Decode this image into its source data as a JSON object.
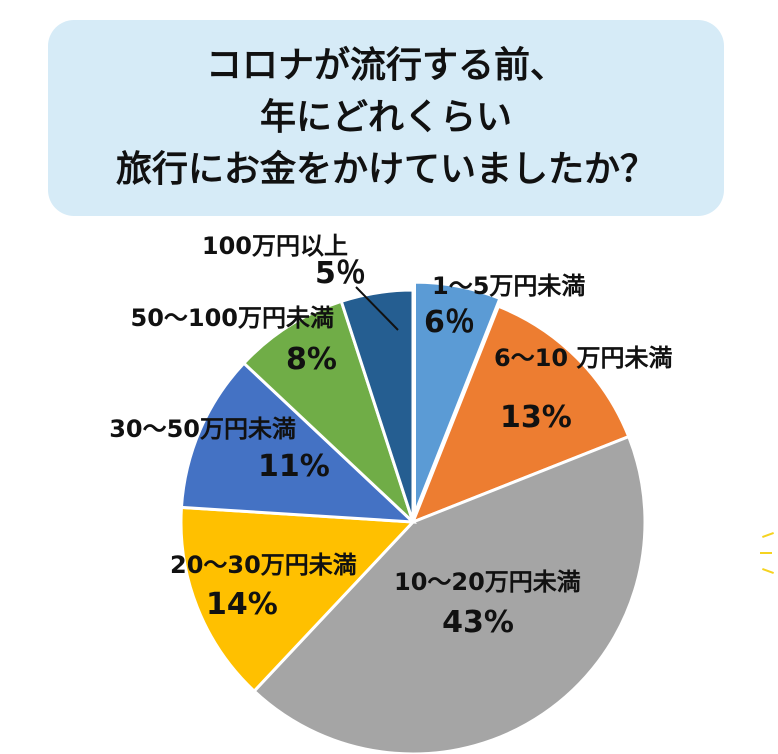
{
  "chart_data": {
    "type": "pie",
    "title": [
      "コロナが流行する前、",
      "年にどれくらい",
      "旅行にお金をかけていましたか？"
    ],
    "slices": [
      {
        "label": "1～5万円未満",
        "value": 6,
        "pct_label": "6％",
        "color": "#5b9bd5"
      },
      {
        "label": "6～10 万円未満",
        "value": 13,
        "pct_label": "13%",
        "color": "#ed7d31"
      },
      {
        "label": "10～20万円未満",
        "value": 43,
        "pct_label": "43%",
        "color": "#a5a5a5"
      },
      {
        "label": "20～30万円未満",
        "value": 14,
        "pct_label": "14%",
        "color": "#ffc000"
      },
      {
        "label": "30～50万円未満",
        "value": 11,
        "pct_label": "11%",
        "color": "#4472c4"
      },
      {
        "label": "50～100万円未満",
        "value": 8,
        "pct_label": "8%",
        "color": "#70ad47"
      },
      {
        "label": "100万円以上",
        "value": 5,
        "pct_label": "5％",
        "color": "#255e91"
      }
    ],
    "legend": "none"
  }
}
